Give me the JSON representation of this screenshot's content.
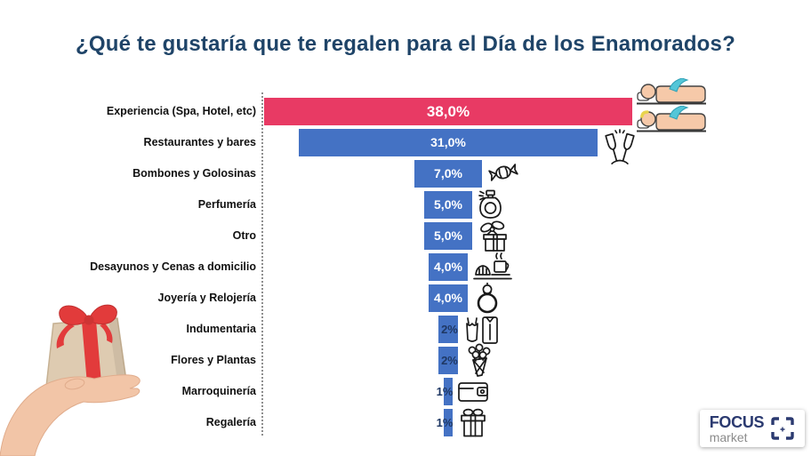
{
  "title": "¿Qué te gustaría que te regalen para el Día de los Enamorados?",
  "chart_data": {
    "type": "bar",
    "subtype": "centered-funnel-horizontal",
    "title": "¿Qué te gustaría que te regalen para el Día de los Enamorados?",
    "unit": "%",
    "grid": false,
    "legend": false,
    "xlim": [
      0,
      38
    ],
    "categories": [
      "Experiencia (Spa, Hotel, etc)",
      "Restaurantes y bares",
      "Bombones y Golosinas",
      "Perfumería",
      "Otro",
      "Desayunos y Cenas a domicilio",
      "Joyería y Relojería",
      "Indumentaria",
      "Flores y Plantas",
      "Marroquinería",
      "Regalería"
    ],
    "values": [
      38,
      31,
      7,
      5,
      5,
      4,
      4,
      2,
      2,
      1,
      1
    ],
    "value_labels": [
      "38,0%",
      "31,0%",
      "7,0%",
      "5,0%",
      "5,0%",
      "4,0%",
      "4,0%",
      "2%",
      "2%",
      "1%",
      "1%"
    ],
    "icons": [
      "spa-massage",
      "toasting-glasses",
      "candy",
      "perfume-bottle",
      "gift-box",
      "breakfast",
      "ring",
      "clothing",
      "flower-bouquet",
      "wallet",
      "gift-box-outline"
    ],
    "highlight_index": 0,
    "colors": {
      "highlight_bar": "#E83A64",
      "bar": "#4472C4",
      "value_label_on_bar": "#FFFFFF",
      "value_label_small": "#1F3864",
      "category_label": "#111111",
      "title": "#1F4468"
    }
  },
  "illustration": {
    "name": "hand-holding-gift"
  },
  "logo": {
    "line1": "FOCUS",
    "line2": "market"
  }
}
